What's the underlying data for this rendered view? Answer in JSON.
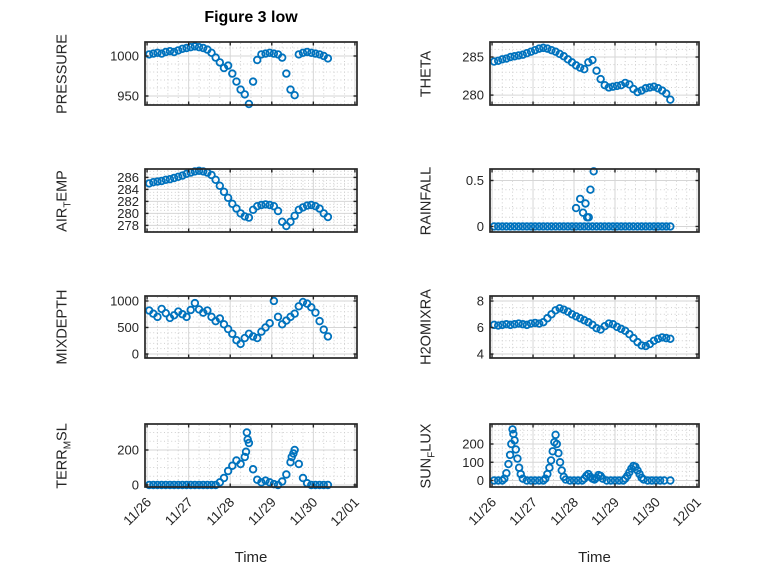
{
  "figure": {
    "title": "Figure 3 low",
    "xlabel": "Time"
  },
  "colors": {
    "marker": "#0072BD",
    "axis": "#262626",
    "grid_major": "#d6d6d6",
    "grid_minor": "#cfcfcf",
    "text": "#262626",
    "background": "#ffffff"
  },
  "xaxis": {
    "xlim": [
      25.95,
      31.05
    ],
    "tick_values": [
      26,
      27,
      28,
      29,
      30,
      31
    ],
    "tick_labels": [
      "11/26",
      "11/27",
      "11/28",
      "11/29",
      "11/30",
      "12/01"
    ],
    "minor_step": 0.25
  },
  "chart_data": [
    {
      "type": "scatter",
      "name": "PRESSURE",
      "label": {
        "pre": "PRESSURE",
        "sub": "",
        "post": ""
      },
      "row": 0,
      "col": 0,
      "ylim": [
        938.75,
        1017.5
      ],
      "yticks": [
        1000,
        950
      ],
      "yminor_step": 10,
      "x": [
        26.05,
        26.15,
        26.25,
        26.35,
        26.45,
        26.55,
        26.65,
        26.75,
        26.85,
        26.95,
        27.05,
        27.15,
        27.25,
        27.35,
        27.45,
        27.55,
        27.65,
        27.75,
        27.85,
        27.95,
        28.05,
        28.15,
        28.25,
        28.35,
        28.45,
        28.55,
        28.65,
        28.75,
        28.85,
        28.95,
        29.05,
        29.15,
        29.25,
        29.35,
        29.45,
        29.55,
        29.65,
        29.75,
        29.85,
        29.95,
        30.05,
        30.15,
        30.25,
        30.35
      ],
      "y": [
        1002,
        1003,
        1004,
        1003,
        1005,
        1006,
        1005,
        1007,
        1009,
        1010,
        1011,
        1012,
        1011,
        1010,
        1008,
        1004,
        998,
        992,
        985,
        988,
        978,
        968,
        958,
        952,
        940,
        968,
        995,
        1002,
        1003,
        1004,
        1003,
        1002,
        998,
        978,
        958,
        951,
        1002,
        1004,
        1005,
        1004,
        1003,
        1002,
        1000,
        997
      ]
    },
    {
      "type": "scatter",
      "name": "THETA",
      "label": {
        "pre": "THETA",
        "sub": "",
        "post": ""
      },
      "row": 0,
      "col": 1,
      "ylim": [
        278.7,
        286.97
      ],
      "yticks": [
        285,
        280
      ],
      "yminor_step": 1,
      "x": [
        26.05,
        26.15,
        26.25,
        26.35,
        26.45,
        26.55,
        26.65,
        26.75,
        26.85,
        26.95,
        27.05,
        27.15,
        27.25,
        27.35,
        27.45,
        27.55,
        27.65,
        27.75,
        27.85,
        27.95,
        28.05,
        28.15,
        28.25,
        28.35,
        28.45,
        28.55,
        28.65,
        28.75,
        28.85,
        28.95,
        29.05,
        29.15,
        29.25,
        29.35,
        29.45,
        29.55,
        29.65,
        29.75,
        29.85,
        29.95,
        30.05,
        30.15,
        30.25,
        30.35
      ],
      "y": [
        284.4,
        284.5,
        284.7,
        284.8,
        285.0,
        285.1,
        285.2,
        285.3,
        285.5,
        285.7,
        285.9,
        286.1,
        286.2,
        286.1,
        285.9,
        285.7,
        285.4,
        285.1,
        284.7,
        284.3,
        283.9,
        283.6,
        283.4,
        284.3,
        284.6,
        283.2,
        282.1,
        281.3,
        281.0,
        281.1,
        281.2,
        281.3,
        281.6,
        281.4,
        280.8,
        280.4,
        280.6,
        280.9,
        281.0,
        281.1,
        280.9,
        280.6,
        280.2,
        279.4
      ]
    },
    {
      "type": "scatter",
      "name": "AIR_TEMP",
      "label": {
        "pre": "AIR",
        "sub": "T",
        "post": "EMP"
      },
      "row": 1,
      "col": 0,
      "ylim": [
        276.9,
        287.4
      ],
      "yticks": [
        286,
        284,
        282,
        280,
        278
      ],
      "yminor_step": 0.5,
      "x": [
        26.05,
        26.15,
        26.25,
        26.35,
        26.45,
        26.55,
        26.65,
        26.75,
        26.85,
        26.95,
        27.05,
        27.15,
        27.25,
        27.35,
        27.45,
        27.55,
        27.65,
        27.75,
        27.85,
        27.95,
        28.05,
        28.15,
        28.25,
        28.35,
        28.45,
        28.55,
        28.65,
        28.75,
        28.85,
        28.95,
        29.05,
        29.15,
        29.25,
        29.35,
        29.45,
        29.55,
        29.65,
        29.75,
        29.85,
        29.95,
        30.05,
        30.15,
        30.25,
        30.35
      ],
      "y": [
        285.0,
        285.2,
        285.3,
        285.4,
        285.6,
        285.7,
        285.9,
        286.1,
        286.3,
        286.6,
        286.8,
        287.0,
        287.1,
        287.0,
        286.8,
        286.4,
        285.6,
        284.6,
        283.6,
        282.6,
        281.6,
        280.8,
        280.0,
        279.5,
        279.3,
        280.6,
        281.2,
        281.4,
        281.5,
        281.4,
        281.2,
        280.4,
        278.6,
        277.9,
        278.6,
        279.6,
        280.6,
        281.0,
        281.3,
        281.4,
        281.2,
        280.8,
        280.0,
        279.4
      ]
    },
    {
      "type": "scatter",
      "name": "RAINFALL",
      "label": {
        "pre": "RAINFALL",
        "sub": "",
        "post": ""
      },
      "row": 1,
      "col": 1,
      "ylim": [
        -0.06,
        0.625
      ],
      "yticks": [
        0.5,
        0
      ],
      "yminor_step": 0.1,
      "x": [
        26.05,
        26.15,
        26.25,
        26.35,
        26.45,
        26.55,
        26.65,
        26.75,
        26.85,
        26.95,
        27.05,
        27.15,
        27.25,
        27.35,
        27.45,
        27.55,
        27.65,
        27.75,
        27.85,
        27.95,
        28.05,
        28.15,
        28.25,
        28.35,
        28.45,
        28.55,
        28.65,
        28.75,
        28.85,
        28.95,
        29.05,
        29.15,
        29.25,
        29.35,
        29.45,
        29.55,
        29.65,
        29.75,
        29.85,
        29.95,
        30.05,
        30.15,
        30.25,
        30.35,
        28.05,
        28.15,
        28.22,
        28.28,
        28.32,
        28.36,
        28.4,
        28.48
      ],
      "y": [
        0,
        0,
        0,
        0,
        0,
        0,
        0,
        0,
        0,
        0,
        0,
        0,
        0,
        0,
        0,
        0,
        0,
        0,
        0,
        0,
        0,
        0,
        0,
        0,
        0,
        0,
        0,
        0,
        0,
        0,
        0,
        0,
        0,
        0,
        0,
        0,
        0,
        0,
        0,
        0,
        0,
        0,
        0,
        0,
        0.2,
        0.3,
        0.15,
        0.25,
        0.1,
        0.1,
        0.4,
        0.6
      ]
    },
    {
      "type": "scatter",
      "name": "MIXDEPTH",
      "label": {
        "pre": "MIXDEPTH",
        "sub": "",
        "post": ""
      },
      "row": 2,
      "col": 0,
      "ylim": [
        -76,
        1094
      ],
      "yticks": [
        1000,
        500,
        0
      ],
      "yminor_step": 100,
      "x": [
        26.05,
        26.15,
        26.25,
        26.35,
        26.45,
        26.55,
        26.65,
        26.75,
        26.85,
        26.95,
        27.05,
        27.15,
        27.25,
        27.35,
        27.45,
        27.55,
        27.65,
        27.75,
        27.85,
        27.95,
        28.05,
        28.15,
        28.25,
        28.35,
        28.45,
        28.55,
        28.65,
        28.75,
        28.85,
        28.95,
        29.05,
        29.15,
        29.25,
        29.35,
        29.45,
        29.55,
        29.65,
        29.75,
        29.85,
        29.95,
        30.05,
        30.15,
        30.25,
        30.35
      ],
      "y": [
        820,
        760,
        700,
        850,
        770,
        680,
        730,
        800,
        750,
        700,
        830,
        960,
        840,
        780,
        820,
        700,
        620,
        670,
        560,
        470,
        380,
        260,
        190,
        300,
        380,
        330,
        300,
        420,
        500,
        580,
        1000,
        700,
        560,
        630,
        700,
        760,
        900,
        980,
        950,
        880,
        780,
        620,
        460,
        330
      ]
    },
    {
      "type": "scatter",
      "name": "H2OMIXRA",
      "label": {
        "pre": "H2OMIXRA",
        "sub": "",
        "post": ""
      },
      "row": 2,
      "col": 1,
      "ylim": [
        3.7,
        8.38
      ],
      "yticks": [
        8,
        6,
        4
      ],
      "yminor_step": 0.5,
      "x": [
        26.05,
        26.15,
        26.25,
        26.35,
        26.45,
        26.55,
        26.65,
        26.75,
        26.85,
        26.95,
        27.05,
        27.15,
        27.25,
        27.35,
        27.45,
        27.55,
        27.65,
        27.75,
        27.85,
        27.95,
        28.05,
        28.15,
        28.25,
        28.35,
        28.45,
        28.55,
        28.65,
        28.75,
        28.85,
        28.95,
        29.05,
        29.15,
        29.25,
        29.35,
        29.45,
        29.55,
        29.65,
        29.75,
        29.85,
        29.95,
        30.05,
        30.15,
        30.25,
        30.35
      ],
      "y": [
        6.2,
        6.15,
        6.2,
        6.25,
        6.2,
        6.25,
        6.3,
        6.25,
        6.2,
        6.3,
        6.35,
        6.3,
        6.4,
        6.7,
        7.0,
        7.3,
        7.45,
        7.35,
        7.2,
        7.0,
        6.85,
        6.7,
        6.55,
        6.4,
        6.2,
        5.95,
        5.85,
        6.1,
        6.3,
        6.25,
        6.05,
        5.9,
        5.75,
        5.5,
        5.2,
        4.9,
        4.65,
        4.6,
        4.75,
        5.0,
        5.15,
        5.25,
        5.2,
        5.15
      ]
    },
    {
      "type": "scatter",
      "name": "TERR_MSL",
      "label": {
        "pre": "TERR",
        "sub": "M",
        "post": "SL"
      },
      "row": 3,
      "col": 0,
      "ylim": [
        -11.4,
        348.6
      ],
      "yticks": [
        200,
        0
      ],
      "yminor_step": 50,
      "x": [
        26.05,
        26.15,
        26.25,
        26.35,
        26.45,
        26.55,
        26.65,
        26.75,
        26.85,
        26.95,
        27.05,
        27.15,
        27.25,
        27.35,
        27.45,
        27.55,
        27.65,
        27.75,
        27.85,
        27.95,
        28.05,
        28.15,
        28.25,
        28.35,
        28.45,
        28.55,
        28.65,
        28.75,
        28.85,
        28.95,
        29.05,
        29.15,
        29.25,
        29.35,
        29.45,
        29.55,
        29.65,
        29.75,
        29.85,
        29.95,
        30.05,
        30.15,
        30.25,
        30.35,
        28.38,
        28.4,
        28.42,
        29.48,
        29.52
      ],
      "y": [
        0,
        0,
        0,
        0,
        0,
        0,
        0,
        0,
        0,
        0,
        0,
        0,
        0,
        0,
        0,
        0,
        0,
        15,
        40,
        80,
        110,
        140,
        120,
        160,
        240,
        90,
        30,
        15,
        25,
        15,
        5,
        0,
        20,
        60,
        130,
        200,
        120,
        40,
        10,
        0,
        0,
        0,
        0,
        0,
        190,
        300,
        260,
        160,
        180
      ]
    },
    {
      "type": "scatter",
      "name": "SUN_FLUX",
      "label": {
        "pre": "SUN",
        "sub": "F",
        "post": "LUX"
      },
      "row": 3,
      "col": 1,
      "ylim": [
        -35.6,
        309.6
      ],
      "yticks": [
        200,
        100,
        0
      ],
      "yminor_step": 25,
      "x": [
        26.05,
        26.15,
        26.25,
        26.3,
        26.35,
        26.4,
        26.44,
        26.47,
        26.5,
        26.52,
        26.55,
        26.58,
        26.62,
        26.66,
        26.7,
        26.75,
        26.85,
        26.95,
        27.05,
        27.15,
        27.25,
        27.3,
        27.35,
        27.4,
        27.44,
        27.48,
        27.52,
        27.55,
        27.58,
        27.62,
        27.66,
        27.7,
        27.75,
        27.8,
        27.9,
        28.0,
        28.1,
        28.2,
        28.25,
        28.3,
        28.35,
        28.4,
        28.45,
        28.5,
        28.55,
        28.6,
        28.65,
        28.7,
        28.8,
        28.9,
        29.0,
        29.1,
        29.2,
        29.25,
        29.3,
        29.35,
        29.4,
        29.45,
        29.5,
        29.55,
        29.6,
        29.65,
        29.7,
        29.8,
        29.9,
        30.0,
        30.1,
        30.2,
        30.35
      ],
      "y": [
        0,
        0,
        0,
        10,
        40,
        90,
        140,
        200,
        280,
        255,
        220,
        170,
        120,
        70,
        35,
        10,
        0,
        0,
        0,
        0,
        0,
        10,
        35,
        70,
        110,
        160,
        210,
        250,
        200,
        150,
        100,
        55,
        20,
        5,
        0,
        0,
        0,
        0,
        10,
        25,
        35,
        20,
        10,
        5,
        15,
        30,
        25,
        10,
        0,
        0,
        0,
        0,
        0,
        10,
        25,
        45,
        65,
        80,
        75,
        55,
        35,
        15,
        5,
        0,
        0,
        0,
        0,
        0,
        0
      ]
    }
  ]
}
